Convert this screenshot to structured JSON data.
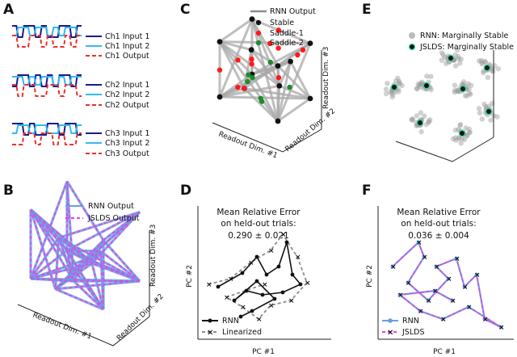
{
  "panels": {
    "A": {
      "label": "A",
      "groups": [
        {
          "input1": "Ch1 Input 1",
          "input2": "Ch1 Input 2",
          "output": "Ch1 Output"
        },
        {
          "input1": "Ch2 Input 1",
          "input2": "Ch2 Input 2",
          "output": "Ch2 Output"
        },
        {
          "input1": "Ch3 Input 1",
          "input2": "Ch3 Input 2",
          "output": "Ch3 Output"
        }
      ]
    },
    "B": {
      "label": "B",
      "legend": [
        "RNN   Output",
        "JSLDS Output"
      ],
      "xlabel": "Readout Dim. #1",
      "ylabel2": "Readout Dim. #2",
      "zlabel": "Readout Dim. #3"
    },
    "C": {
      "label": "C",
      "legend": [
        "RNN Output",
        "Stable",
        "Saddle-1",
        "Saddle-2"
      ],
      "xlabel": "Readout Dim. #1",
      "ylabel2": "Readout Dim. #2",
      "zlabel": "Readout Dim. #3"
    },
    "D": {
      "label": "D",
      "title": [
        "Mean Relative Error",
        "on held-out trials:",
        "0.290 ± 0.021"
      ],
      "legend": [
        "RNN",
        "Linearized"
      ],
      "xlabel": "PC #1",
      "ylabel": "PC #2"
    },
    "E": {
      "label": "E",
      "legend": [
        "RNN: Marginally Stable",
        "JSLDS: Marginally Stable"
      ]
    },
    "F": {
      "label": "F",
      "title": [
        "Mean Relative Error",
        "on held-out trials:",
        "0.036 ± 0.004"
      ],
      "legend": [
        "RNN",
        "JSLDS"
      ],
      "xlabel": "PC #1",
      "ylabel": "PC #2"
    }
  },
  "colors": {
    "dark_navy": "#1a1a8c",
    "light_blue": "#33bbee",
    "red_dashed": "#e8312a",
    "rnn_blue": "#6a9de6",
    "jslds_magenta": "#ee3fe0",
    "gray": "#8c8c8c",
    "stable": "#111111",
    "saddle1": "#ff1a1a",
    "saddle2": "#1e8c2a"
  }
}
